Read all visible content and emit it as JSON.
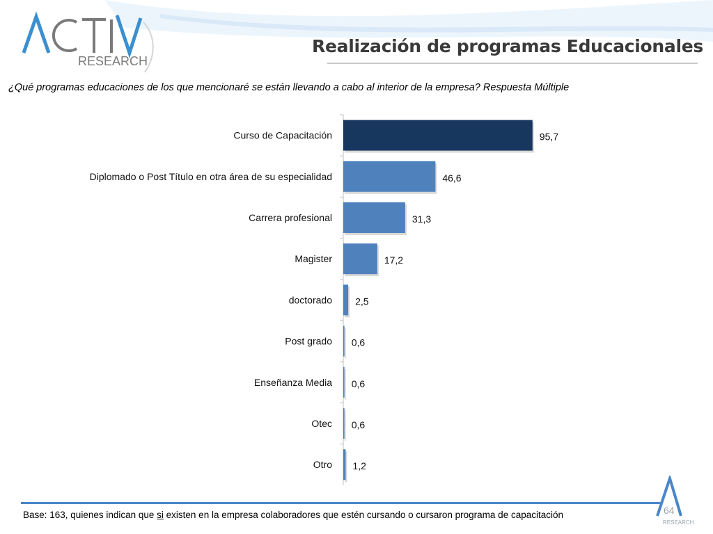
{
  "logo": {
    "text_top": "ACTIVA",
    "text_bottom": "RESEARCH"
  },
  "title": "Realización de programas Educacionales",
  "question": "¿Qué programas educaciones de los que mencionaré se están llevando a cabo al interior de la empresa? Respuesta Múltiple",
  "footnote": {
    "prefix": "Base: 163, quienes indican que ",
    "underlined": "si",
    "suffix": " existen en la empresa colaboradores que estén cursando o cursaron programa de capacitación"
  },
  "page_number": "64",
  "corner_logo_text": "RESEARCH",
  "colors": {
    "highlight_bar": "#17375e",
    "bar": "#4f81bd",
    "footer_rule": "#4a86c8"
  },
  "chart_data": {
    "type": "bar",
    "orientation": "horizontal",
    "categories": [
      "Curso de Capacitación",
      "Diplomado o Post Título en otra área de su especialidad",
      "Carrera profesional",
      "Magister",
      "doctorado",
      "Post grado",
      "Enseñanza Media",
      "Otec",
      "Otro"
    ],
    "values": [
      95.7,
      46.6,
      31.3,
      17.2,
      2.5,
      0.6,
      0.6,
      0.6,
      1.2
    ],
    "value_labels": [
      "95,7",
      "46,6",
      "31,3",
      "17,2",
      "2,5",
      "0,6",
      "0,6",
      "0,6",
      "1,2"
    ],
    "xlim": [
      0,
      100
    ],
    "highlight_index": 0,
    "grid": false,
    "legend": "none"
  }
}
